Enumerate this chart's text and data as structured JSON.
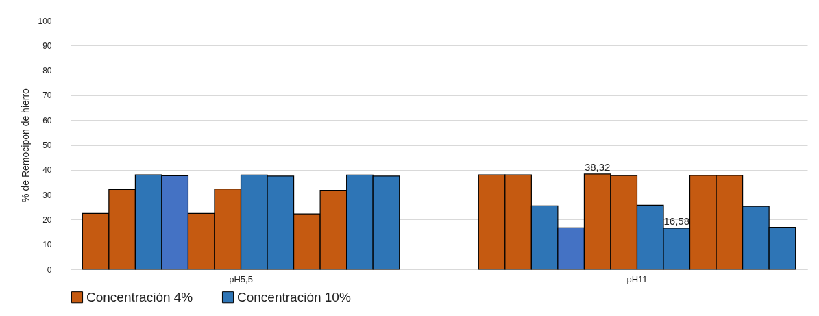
{
  "chart_data": {
    "type": "bar",
    "ylabel": "% de Remocipon de hierro",
    "categories": [
      "pH5,5",
      "pH11"
    ],
    "series": [
      {
        "name": "Concentración 4%",
        "color": "#c55a11",
        "values": [
          22.5,
          38.0
        ]
      },
      {
        "color": "#c55a11",
        "values": [
          32.1,
          38.0
        ]
      },
      {
        "name": "Concentración 10%",
        "color": "#2e75b6",
        "values": [
          38.0,
          25.5
        ]
      },
      {
        "color": "#4472c4",
        "values": [
          37.6,
          16.7
        ]
      },
      {
        "color": "#c55a11",
        "values": [
          22.5,
          38.32
        ],
        "value_labels": [
          null,
          "38,32"
        ]
      },
      {
        "color": "#c55a11",
        "values": [
          32.3,
          37.7
        ]
      },
      {
        "color": "#2e75b6",
        "values": [
          37.9,
          25.8
        ]
      },
      {
        "color": "#2e75b6",
        "values": [
          37.5,
          16.58
        ],
        "value_labels": [
          null,
          "16,58"
        ]
      },
      {
        "color": "#c55a11",
        "values": [
          22.3,
          37.8
        ]
      },
      {
        "color": "#c55a11",
        "values": [
          31.8,
          37.8
        ]
      },
      {
        "color": "#2e75b6",
        "values": [
          37.9,
          25.3
        ]
      },
      {
        "color": "#2e75b6",
        "values": [
          37.5,
          16.9
        ]
      }
    ],
    "ylim": [
      0,
      100
    ],
    "yticks": [
      0,
      10,
      20,
      30,
      40,
      50,
      60,
      70,
      80,
      90,
      100
    ],
    "grid": "y",
    "legend": "bottom"
  }
}
